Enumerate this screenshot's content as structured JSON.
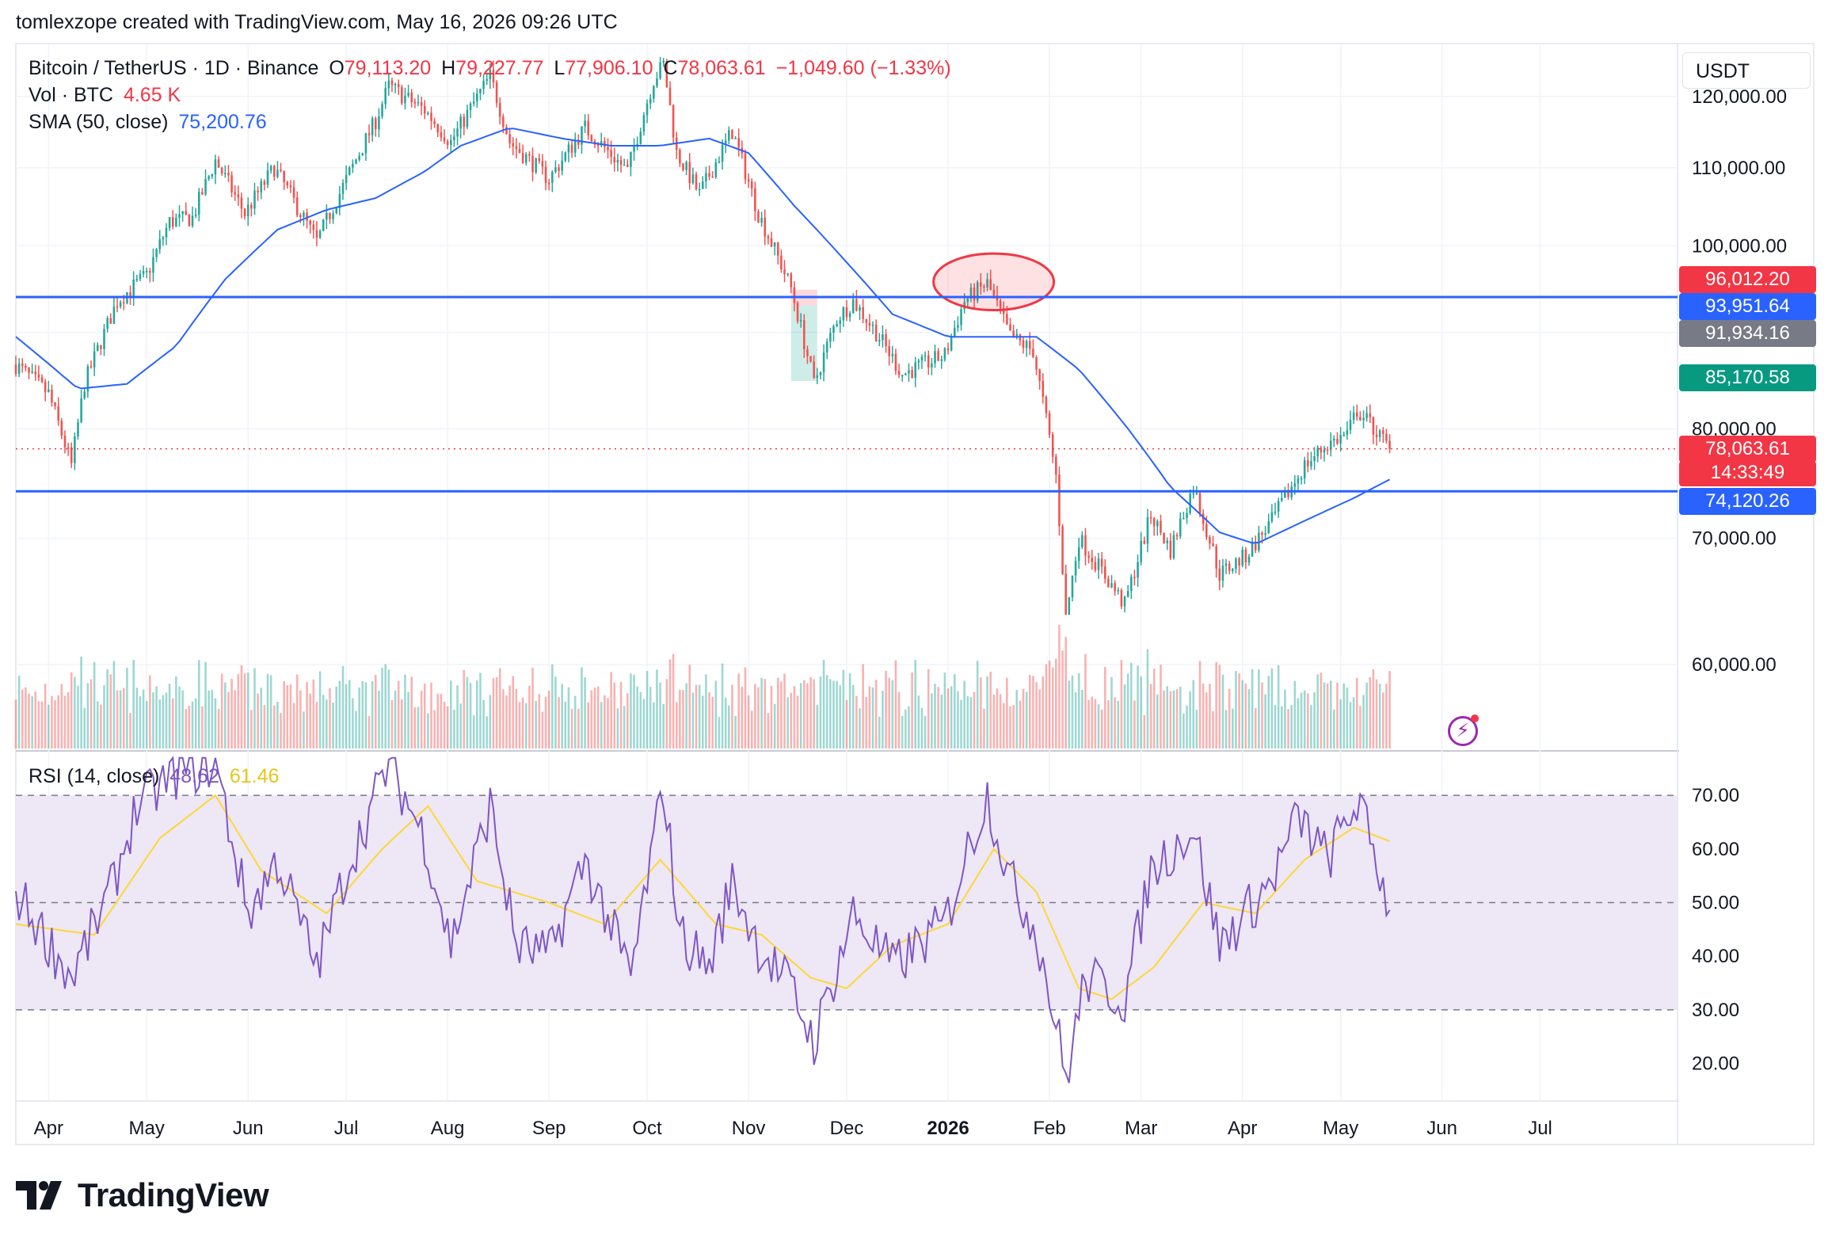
{
  "header": {
    "credit": "tomlexzope created with TradingView.com, May 16, 2026 09:26 UTC"
  },
  "legend": {
    "symbol": "Bitcoin / TetherUS · 1D · Binance",
    "o_label": "O",
    "o": "79,113.20",
    "h_label": "H",
    "h": "79,227.77",
    "l_label": "L",
    "l": "77,906.10",
    "c_label": "C",
    "c": "78,063.61",
    "change": "−1,049.60 (−1.33%)",
    "vol_label": "Vol · BTC",
    "vol": "4.65 K",
    "sma_label": "SMA (50, close)",
    "sma": "75,200.76",
    "rsi_label": "RSI (14, close)",
    "rsi": "48.62",
    "rsi_ma": "61.46"
  },
  "currency_button": "USDT",
  "brand": "TradingView",
  "colors": {
    "up": "#26a69a",
    "down": "#ef5350",
    "sma": "#2962ff",
    "hline": "#2962ff",
    "rsi": "#7e57c2",
    "rsi_ma": "#fdd835",
    "rsi_band": "#ede7f6"
  },
  "price_tags": [
    {
      "label": "96,012.20",
      "color": "#f23645",
      "value": 96012.2
    },
    {
      "label": "93,951.64",
      "color": "#2962ff",
      "value": 93951.64
    },
    {
      "label": "91,934.16",
      "color": "#787b86",
      "value": 91934.16
    },
    {
      "label": "85,170.58",
      "color": "#089981",
      "value": 85170.58
    },
    {
      "label": "78,063.61",
      "color": "#f23645",
      "value": 78063.61
    },
    {
      "label": "14:33:49",
      "color": "#f23645",
      "value": null
    },
    {
      "label": "74,120.26",
      "color": "#2962ff",
      "value": 74120.26
    }
  ],
  "chart_data": [
    {
      "type": "candlestick",
      "title": "Bitcoin / TetherUS · 1D · Binance",
      "price_axis": {
        "ticks": [
          120000,
          110000,
          100000,
          90000,
          80000,
          70000,
          60000
        ],
        "tick_labels": [
          "120,000.00",
          "110,000.00",
          "100,000.00",
          "90,000.00",
          "80,000.00",
          "70,000.00",
          "60,000.00"
        ],
        "ylim": [
          54000,
          128000
        ]
      },
      "time_axis": {
        "labels": [
          "Apr",
          "May",
          "Jun",
          "Jul",
          "Aug",
          "Sep",
          "Oct",
          "Nov",
          "Dec",
          "2026",
          "Feb",
          "Mar",
          "Apr",
          "May",
          "Jun",
          "Jul"
        ],
        "dates": [
          "2025-04-01",
          "2025-05-01",
          "2025-06-01",
          "2025-07-01",
          "2025-08-01",
          "2025-09-01",
          "2025-10-01",
          "2025-11-01",
          "2025-12-01",
          "2026-01-01",
          "2026-02-01",
          "2026-03-01",
          "2026-04-01",
          "2026-05-01",
          "2026-06-01",
          "2026-07-01"
        ],
        "range": [
          "2025-03-22",
          "2026-08-12"
        ]
      },
      "series": [
        {
          "name": "Close (approx. path)",
          "points": [
            [
              "2025-03-22",
              86500
            ],
            [
              "2025-04-01",
              83500
            ],
            [
              "2025-04-08",
              76500
            ],
            [
              "2025-04-12",
              84500
            ],
            [
              "2025-04-22",
              93500
            ],
            [
              "2025-05-01",
              96500
            ],
            [
              "2025-05-08",
              103000
            ],
            [
              "2025-05-15",
              103500
            ],
            [
              "2025-05-22",
              111000
            ],
            [
              "2025-05-31",
              104000
            ],
            [
              "2025-06-09",
              110000
            ],
            [
              "2025-06-22",
              100500
            ],
            [
              "2025-06-30",
              107500
            ],
            [
              "2025-07-10",
              116500
            ],
            [
              "2025-07-14",
              121500
            ],
            [
              "2025-07-25",
              118000
            ],
            [
              "2025-08-02",
              113500
            ],
            [
              "2025-08-14",
              123000
            ],
            [
              "2025-08-20",
              113500
            ],
            [
              "2025-09-01",
              108500
            ],
            [
              "2025-09-12",
              115500
            ],
            [
              "2025-09-25",
              109500
            ],
            [
              "2025-10-03",
              122500
            ],
            [
              "2025-10-06",
              124800
            ],
            [
              "2025-10-10",
              112000
            ],
            [
              "2025-10-17",
              106500
            ],
            [
              "2025-10-27",
              115000
            ],
            [
              "2025-11-04",
              104000
            ],
            [
              "2025-11-14",
              95000
            ],
            [
              "2025-11-21",
              84500
            ],
            [
              "2025-11-28",
              91500
            ],
            [
              "2025-12-03",
              93500
            ],
            [
              "2025-12-10",
              90000
            ],
            [
              "2025-12-18",
              85500
            ],
            [
              "2025-12-31",
              87500
            ],
            [
              "2026-01-06",
              93500
            ],
            [
              "2026-01-13",
              95500
            ],
            [
              "2026-01-20",
              89500
            ],
            [
              "2026-01-27",
              88000
            ],
            [
              "2026-02-03",
              75500
            ],
            [
              "2026-02-06",
              63500
            ],
            [
              "2026-02-10",
              70000
            ],
            [
              "2026-02-24",
              64500
            ],
            [
              "2026-03-04",
              72000
            ],
            [
              "2026-03-10",
              69000
            ],
            [
              "2026-03-17",
              74500
            ],
            [
              "2026-03-25",
              67000
            ],
            [
              "2026-04-02",
              68500
            ],
            [
              "2026-04-10",
              71500
            ],
            [
              "2026-04-20",
              76500
            ],
            [
              "2026-04-27",
              78500
            ],
            [
              "2026-05-03",
              79500
            ],
            [
              "2026-05-06",
              81800
            ],
            [
              "2026-05-10",
              80500
            ],
            [
              "2026-05-16",
              78063.61
            ]
          ]
        },
        {
          "name": "SMA (50, close)",
          "points": [
            [
              "2025-03-22",
              89500
            ],
            [
              "2025-04-10",
              84000
            ],
            [
              "2025-04-25",
              84500
            ],
            [
              "2025-05-10",
              88500
            ],
            [
              "2025-05-25",
              96000
            ],
            [
              "2025-06-10",
              102000
            ],
            [
              "2025-06-25",
              104500
            ],
            [
              "2025-07-10",
              106000
            ],
            [
              "2025-07-25",
              109500
            ],
            [
              "2025-08-05",
              113000
            ],
            [
              "2025-08-20",
              115500
            ],
            [
              "2025-09-05",
              114000
            ],
            [
              "2025-09-20",
              113000
            ],
            [
              "2025-10-05",
              113000
            ],
            [
              "2025-10-20",
              114000
            ],
            [
              "2025-11-01",
              112000
            ],
            [
              "2025-11-15",
              105000
            ],
            [
              "2025-12-01",
              98000
            ],
            [
              "2025-12-15",
              92000
            ],
            [
              "2026-01-01",
              89500
            ],
            [
              "2026-01-15",
              89500
            ],
            [
              "2026-01-28",
              89500
            ],
            [
              "2026-02-10",
              86000
            ],
            [
              "2026-02-25",
              80000
            ],
            [
              "2026-03-10",
              74500
            ],
            [
              "2026-03-25",
              70500
            ],
            [
              "2026-04-05",
              69500
            ],
            [
              "2026-04-20",
              71500
            ],
            [
              "2026-05-05",
              73500
            ],
            [
              "2026-05-16",
              75200.76
            ]
          ]
        }
      ],
      "horizontal_lines": [
        93951.64,
        74120.26
      ],
      "annotations": [
        {
          "shape": "ellipse",
          "around": "2026-01-13",
          "price_range": [
            93000,
            98500
          ]
        },
        {
          "shape": "box",
          "dates": [
            "2025-11-14",
            "2025-11-22"
          ],
          "price_range": [
            84800,
            94800
          ]
        }
      ],
      "last_price": 78063.61
    },
    {
      "type": "line",
      "title": "RSI (14, close)",
      "ylim": [
        13,
        78
      ],
      "ticks": [
        70,
        60,
        50,
        40,
        30,
        20
      ],
      "tick_labels": [
        "70.00",
        "60.00",
        "50.00",
        "40.00",
        "30.00",
        "20.00"
      ],
      "band": [
        30,
        70
      ],
      "series": [
        {
          "name": "RSI",
          "points": [
            [
              "2025-03-22",
              52
            ],
            [
              "2025-04-08",
              36
            ],
            [
              "2025-04-20",
              52
            ],
            [
              "2025-04-28",
              68
            ],
            [
              "2025-05-10",
              74
            ],
            [
              "2025-05-22",
              76
            ],
            [
              "2025-06-01",
              48
            ],
            [
              "2025-06-10",
              58
            ],
            [
              "2025-06-22",
              38
            ],
            [
              "2025-07-01",
              56
            ],
            [
              "2025-07-14",
              76
            ],
            [
              "2025-07-25",
              62
            ],
            [
              "2025-08-02",
              42
            ],
            [
              "2025-08-14",
              68
            ],
            [
              "2025-08-22",
              42
            ],
            [
              "2025-09-01",
              40
            ],
            [
              "2025-09-12",
              58
            ],
            [
              "2025-09-26",
              36
            ],
            [
              "2025-10-06",
              72
            ],
            [
              "2025-10-11",
              44
            ],
            [
              "2025-10-20",
              38
            ],
            [
              "2025-10-27",
              54
            ],
            [
              "2025-11-04",
              42
            ],
            [
              "2025-11-14",
              34
            ],
            [
              "2025-11-21",
              24
            ],
            [
              "2025-12-03",
              48
            ],
            [
              "2025-12-15",
              38
            ],
            [
              "2025-12-31",
              46
            ],
            [
              "2026-01-06",
              58
            ],
            [
              "2026-01-13",
              70
            ],
            [
              "2026-01-20",
              54
            ],
            [
              "2026-01-28",
              45
            ],
            [
              "2026-02-04",
              24
            ],
            [
              "2026-02-06",
              17
            ],
            [
              "2026-02-12",
              36
            ],
            [
              "2026-02-24",
              32
            ],
            [
              "2026-03-04",
              56
            ],
            [
              "2026-03-17",
              64
            ],
            [
              "2026-03-25",
              42
            ],
            [
              "2026-04-10",
              54
            ],
            [
              "2026-04-18",
              66
            ],
            [
              "2026-04-27",
              58
            ],
            [
              "2026-05-06",
              69
            ],
            [
              "2026-05-12",
              58
            ],
            [
              "2026-05-16",
              48.62
            ]
          ]
        },
        {
          "name": "RSI-based MA",
          "points": [
            [
              "2025-03-22",
              46
            ],
            [
              "2025-04-15",
              44
            ],
            [
              "2025-05-05",
              62
            ],
            [
              "2025-05-22",
              70
            ],
            [
              "2025-06-05",
              56
            ],
            [
              "2025-06-25",
              48
            ],
            [
              "2025-07-12",
              60
            ],
            [
              "2025-07-26",
              68
            ],
            [
              "2025-08-10",
              54
            ],
            [
              "2025-09-01",
              50
            ],
            [
              "2025-09-18",
              46
            ],
            [
              "2025-10-05",
              58
            ],
            [
              "2025-10-22",
              46
            ],
            [
              "2025-11-05",
              44
            ],
            [
              "2025-11-20",
              36
            ],
            [
              "2025-12-01",
              34
            ],
            [
              "2025-12-15",
              42
            ],
            [
              "2026-01-01",
              46
            ],
            [
              "2026-01-15",
              60
            ],
            [
              "2026-01-28",
              52
            ],
            [
              "2026-02-10",
              34
            ],
            [
              "2026-02-20",
              32
            ],
            [
              "2026-03-05",
              38
            ],
            [
              "2026-03-20",
              50
            ],
            [
              "2026-04-05",
              48
            ],
            [
              "2026-04-20",
              58
            ],
            [
              "2026-05-05",
              64
            ],
            [
              "2026-05-16",
              61.46
            ]
          ]
        }
      ]
    }
  ]
}
